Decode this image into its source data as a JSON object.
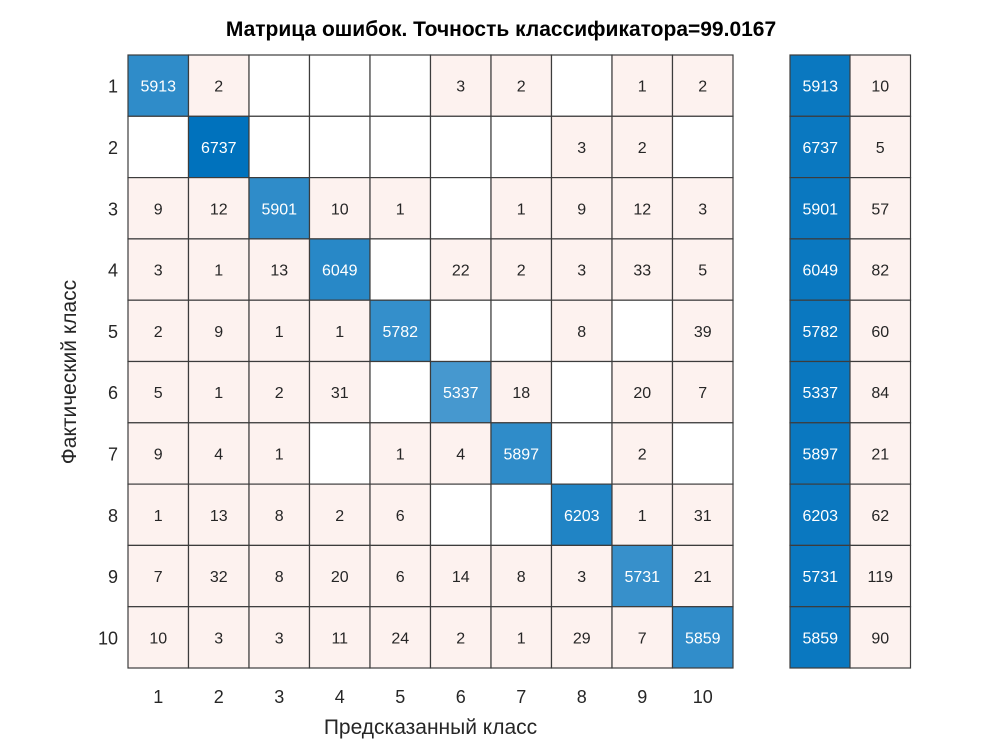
{
  "chart_data": {
    "type": "heatmap",
    "title": "Матрица ошибок. Точность классификатора=99.0167",
    "xlabel": "Предсказанный класс",
    "ylabel": "Фактический класс",
    "classes": [
      "1",
      "2",
      "3",
      "4",
      "5",
      "6",
      "7",
      "8",
      "9",
      "10"
    ],
    "matrix": [
      [
        5913,
        2,
        null,
        null,
        null,
        3,
        2,
        null,
        1,
        2
      ],
      [
        null,
        6737,
        null,
        null,
        null,
        null,
        null,
        3,
        2,
        null
      ],
      [
        9,
        12,
        5901,
        10,
        1,
        null,
        1,
        9,
        12,
        3
      ],
      [
        3,
        1,
        13,
        6049,
        null,
        22,
        2,
        3,
        33,
        5
      ],
      [
        2,
        9,
        1,
        1,
        5782,
        null,
        null,
        8,
        null,
        39
      ],
      [
        5,
        1,
        2,
        31,
        null,
        5337,
        18,
        null,
        20,
        7
      ],
      [
        9,
        4,
        1,
        null,
        1,
        4,
        5897,
        null,
        2,
        null
      ],
      [
        1,
        13,
        8,
        2,
        6,
        null,
        null,
        6203,
        1,
        31
      ],
      [
        7,
        32,
        8,
        20,
        6,
        14,
        8,
        3,
        5731,
        21
      ],
      [
        10,
        3,
        3,
        11,
        24,
        2,
        1,
        29,
        7,
        5859
      ]
    ],
    "row_summary": {
      "correct": [
        5913,
        6737,
        5901,
        6049,
        5782,
        5337,
        5897,
        6203,
        5731,
        5859
      ],
      "incorrect": [
        10,
        5,
        57,
        82,
        60,
        84,
        21,
        62,
        119,
        90
      ]
    },
    "colors": {
      "diag": "#0072BD",
      "offdiag": "#FDF2EF",
      "grid": "#3c3c3c"
    }
  }
}
